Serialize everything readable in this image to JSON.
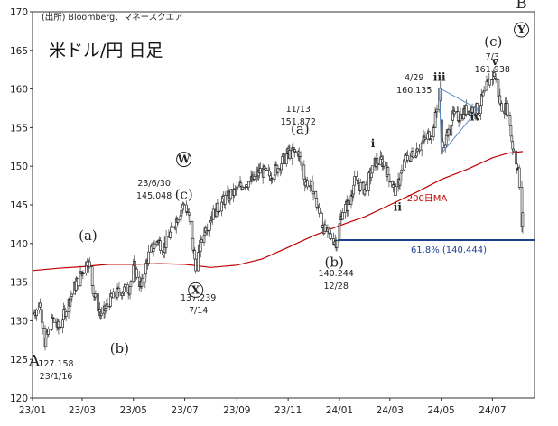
{
  "title": "米ドル/円 日足",
  "source": "(出所) Bloomberg、マネースクエア",
  "chart_data": {
    "type": "line",
    "xlabel": "",
    "ylabel": "",
    "ylim": [
      120,
      170
    ],
    "yticks": [
      120,
      125,
      130,
      135,
      140,
      145,
      150,
      155,
      160,
      165,
      170
    ],
    "xticks": [
      "23/01",
      "23/03",
      "23/05",
      "23/07",
      "23/09",
      "23/11",
      "24/01",
      "24/03",
      "24/05",
      "24/07"
    ],
    "grid": false,
    "series": [
      {
        "key": "price",
        "color": "#222222",
        "points": [
          [
            "2023-01-03",
            131.0
          ],
          [
            "2023-01-10",
            132.2
          ],
          [
            "2023-01-16",
            127.158
          ],
          [
            "2023-01-25",
            130.2
          ],
          [
            "2023-02-01",
            129.0
          ],
          [
            "2023-02-10",
            131.6
          ],
          [
            "2023-02-20",
            134.3
          ],
          [
            "2023-03-01",
            136.3
          ],
          [
            "2023-03-08",
            137.9
          ],
          [
            "2023-03-15",
            133.5
          ],
          [
            "2023-03-24",
            130.5
          ],
          [
            "2023-04-03",
            132.6
          ],
          [
            "2023-04-14",
            133.8
          ],
          [
            "2023-04-26",
            134.2
          ],
          [
            "2023-05-02",
            137.0
          ],
          [
            "2023-05-10",
            134.3
          ],
          [
            "2023-05-19",
            138.5
          ],
          [
            "2023-05-30",
            140.5
          ],
          [
            "2023-06-05",
            139.3
          ],
          [
            "2023-06-15",
            141.5
          ],
          [
            "2023-06-22",
            143.4
          ],
          [
            "2023-06-30",
            145.048
          ],
          [
            "2023-07-05",
            144.0
          ],
          [
            "2023-07-14",
            137.239
          ],
          [
            "2023-07-24",
            141.6
          ],
          [
            "2023-08-01",
            143.4
          ],
          [
            "2023-08-10",
            144.7
          ],
          [
            "2023-08-18",
            145.8
          ],
          [
            "2023-08-29",
            146.6
          ],
          [
            "2023-09-08",
            147.7
          ],
          [
            "2023-09-20",
            148.2
          ],
          [
            "2023-09-29",
            149.4
          ],
          [
            "2023-10-10",
            148.8
          ],
          [
            "2023-10-20",
            149.9
          ],
          [
            "2023-10-31",
            151.6
          ],
          [
            "2023-11-13",
            151.872
          ],
          [
            "2023-11-21",
            148.2
          ],
          [
            "2023-11-30",
            147.2
          ],
          [
            "2023-12-07",
            144.2
          ],
          [
            "2023-12-14",
            141.7
          ],
          [
            "2023-12-28",
            140.244
          ],
          [
            "2024-01-05",
            144.4
          ],
          [
            "2024-01-12",
            145.1
          ],
          [
            "2024-01-19",
            148.0
          ],
          [
            "2024-01-31",
            147.0
          ],
          [
            "2024-02-13",
            150.6
          ],
          [
            "2024-02-22",
            150.5
          ],
          [
            "2024-03-08",
            146.6
          ],
          [
            "2024-03-19",
            150.8
          ],
          [
            "2024-03-27",
            151.4
          ],
          [
            "2024-04-10",
            153.3
          ],
          [
            "2024-04-22",
            154.8
          ],
          [
            "2024-04-29",
            160.135
          ],
          [
            "2024-05-03",
            151.9
          ],
          [
            "2024-05-14",
            156.4
          ],
          [
            "2024-05-22",
            156.4
          ],
          [
            "2024-05-31",
            157.3
          ],
          [
            "2024-06-14",
            157.4
          ],
          [
            "2024-06-26",
            160.8
          ],
          [
            "2024-07-03",
            161.938
          ],
          [
            "2024-07-11",
            157.8
          ],
          [
            "2024-07-19",
            157.4
          ],
          [
            "2024-07-25",
            152.6
          ],
          [
            "2024-08-01",
            149.3
          ],
          [
            "2024-08-05",
            141.7
          ],
          [
            "2024-08-06",
            144.2
          ]
        ]
      },
      {
        "key": "ma200",
        "color": "#c00000",
        "label": "200日MA",
        "points": [
          [
            "2023-01-01",
            136.5
          ],
          [
            "2023-02-01",
            136.8
          ],
          [
            "2023-03-01",
            137.0
          ],
          [
            "2023-04-01",
            137.3
          ],
          [
            "2023-05-01",
            137.3
          ],
          [
            "2023-06-01",
            137.4
          ],
          [
            "2023-07-01",
            137.3
          ],
          [
            "2023-08-01",
            136.9
          ],
          [
            "2023-09-01",
            137.2
          ],
          [
            "2023-10-01",
            138.0
          ],
          [
            "2023-11-01",
            139.5
          ],
          [
            "2023-12-01",
            141.0
          ],
          [
            "2024-01-01",
            142.3
          ],
          [
            "2024-02-01",
            143.5
          ],
          [
            "2024-03-01",
            145.0
          ],
          [
            "2024-04-01",
            146.6
          ],
          [
            "2024-05-01",
            148.3
          ],
          [
            "2024-06-01",
            149.6
          ],
          [
            "2024-07-01",
            151.1
          ],
          [
            "2024-07-20",
            151.7
          ],
          [
            "2024-08-06",
            151.9
          ]
        ]
      }
    ],
    "hline": {
      "y": 140.444,
      "label": "61.8% (140.444)",
      "color": "#1f3f8f"
    },
    "triangle": [
      [
        "2024-04-29",
        160.1
      ],
      [
        "2024-06-14",
        157.4
      ],
      [
        "2024-05-01",
        151.6
      ]
    ],
    "point_labels": [
      {
        "x": "2023-01-16",
        "y": 127.158,
        "lines": [
          "127.158",
          "23/1/16"
        ]
      },
      {
        "x": "2023-06-30",
        "y": 145.048,
        "lines": [
          "23/6/30",
          "145.048"
        ]
      },
      {
        "x": "2023-07-14",
        "y": 137.239,
        "lines": [
          "137.239",
          "7/14"
        ]
      },
      {
        "x": "2023-11-13",
        "y": 151.872,
        "lines": [
          "11/13",
          "151.872"
        ]
      },
      {
        "x": "2023-12-28",
        "y": 140.244,
        "lines": [
          "140.244",
          "12/28"
        ]
      },
      {
        "x": "2024-04-29",
        "y": 160.135,
        "lines": [
          "4/29",
          "160.135"
        ]
      },
      {
        "x": "2024-07-03",
        "y": 161.938,
        "lines": [
          "7/3",
          "161.938"
        ]
      }
    ],
    "wave_labels": [
      {
        "text": "A",
        "x": "2023-01-16",
        "y": 127.158,
        "style": "big"
      },
      {
        "text": "(a)",
        "x": "2023-03-08",
        "y": 137.9,
        "style": "wave"
      },
      {
        "text": "(b)",
        "x": "2023-03-24",
        "y": 130.5,
        "style": "wave"
      },
      {
        "text": "(c)",
        "x": "2023-06-30",
        "y": 145.048,
        "style": "wave"
      },
      {
        "text": "W",
        "x": "2023-06-30",
        "y": 145.048,
        "style": "circle"
      },
      {
        "text": "X",
        "x": "2023-07-14",
        "y": 137.239,
        "style": "circle"
      },
      {
        "text": "(a)",
        "x": "2023-11-13",
        "y": 151.872,
        "style": "wave"
      },
      {
        "text": "(b)",
        "x": "2023-12-28",
        "y": 140.244,
        "style": "wave"
      },
      {
        "text": "i",
        "x": "2024-02-13",
        "y": 150.6,
        "style": "roman"
      },
      {
        "text": "ii",
        "x": "2024-03-08",
        "y": 146.6,
        "style": "roman"
      },
      {
        "text": "iii",
        "x": "2024-04-29",
        "y": 160.135,
        "style": "roman"
      },
      {
        "text": "iv",
        "x": "2024-05-31",
        "y": 153.5,
        "style": "roman"
      },
      {
        "text": "v",
        "x": "2024-07-03",
        "y": 161.938,
        "style": "roman"
      },
      {
        "text": "(c)",
        "x": "2024-07-03",
        "y": 161.938,
        "style": "wave"
      },
      {
        "text": "B",
        "x": "2024-07-14",
        "y": 161.938,
        "style": "big"
      },
      {
        "text": "Y",
        "x": "2024-07-14",
        "y": 161.938,
        "style": "circle"
      }
    ]
  }
}
